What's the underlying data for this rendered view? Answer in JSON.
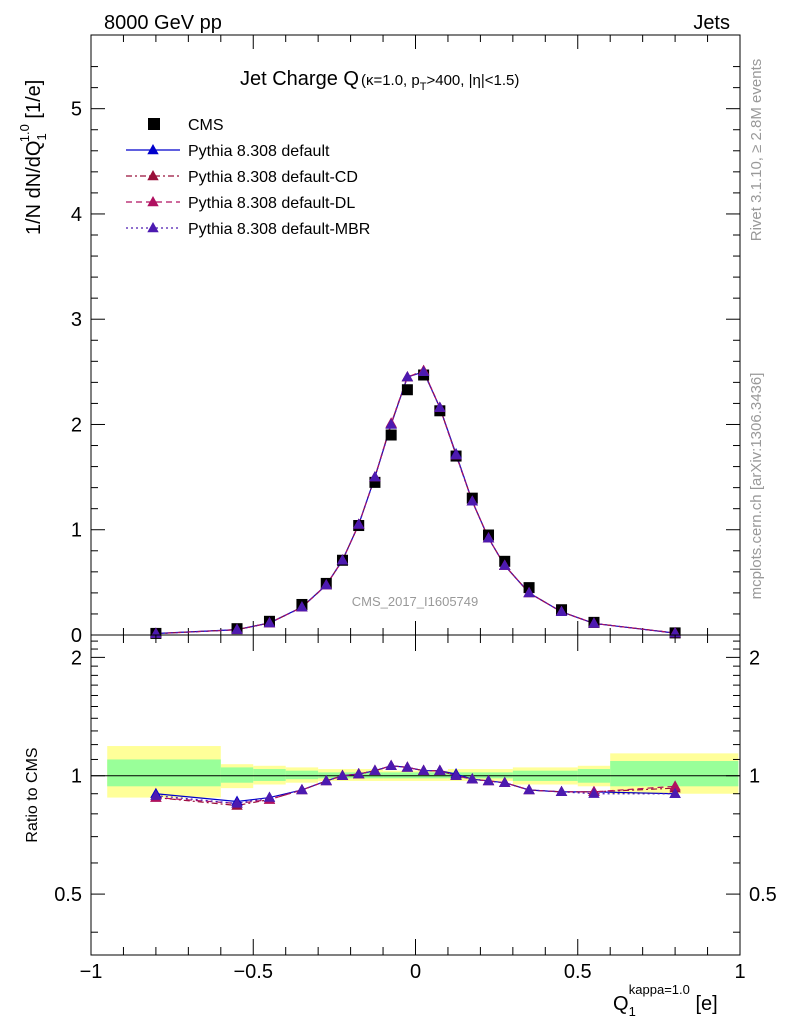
{
  "header": {
    "left": "8000 GeV pp",
    "right": "Jets"
  },
  "side_labels": {
    "rivet": "Rivet 3.1.10, ≥ 2.8M events",
    "mcplots": "mcplots.cern.ch [arXiv:1306.3436]"
  },
  "watermark": "CMS_2017_I1605749",
  "chart_data": [
    {
      "type": "scatter",
      "panel": "main",
      "title": "Jet Charge Q",
      "title_sub": {
        "prefix": "(κ=1.0, p",
        "sub": "T",
        "suffix": ">400, |η|<1.5)"
      },
      "ylabel": {
        "base": "1/N dN/dQ",
        "sub": "1",
        "sup": "1.0",
        "unit": " [1/e]"
      },
      "xlim": [
        -1,
        1
      ],
      "ylim": [
        0,
        5.7
      ],
      "y_ticks": [
        0,
        1,
        2,
        3,
        4,
        5
      ],
      "x": [
        -0.8,
        -0.55,
        -0.45,
        -0.35,
        -0.275,
        -0.225,
        -0.175,
        -0.125,
        -0.075,
        -0.025,
        0.025,
        0.075,
        0.125,
        0.175,
        0.225,
        0.275,
        0.35,
        0.45,
        0.55,
        0.8
      ],
      "legend": {
        "placement": "top-left"
      },
      "series": [
        {
          "name": "CMS",
          "style": "data",
          "color": "#000000",
          "values": [
            0.015,
            0.06,
            0.13,
            0.29,
            0.49,
            0.71,
            1.04,
            1.45,
            1.9,
            2.33,
            2.47,
            2.13,
            1.7,
            1.3,
            0.95,
            0.7,
            0.45,
            0.24,
            0.12,
            0.02
          ]
        },
        {
          "name": "Pythia 8.308 default",
          "style": "solid",
          "color": "#0000cc",
          "values": [
            0.014,
            0.051,
            0.115,
            0.265,
            0.475,
            0.71,
            1.05,
            1.5,
            2.0,
            2.45,
            2.5,
            2.16,
            1.72,
            1.27,
            0.92,
            0.66,
            0.4,
            0.22,
            0.11,
            0.018
          ]
        },
        {
          "name": "Pythia 8.308 default-CD",
          "style": "dashdot",
          "color": "#99103a",
          "values": [
            0.013,
            0.051,
            0.114,
            0.263,
            0.474,
            0.71,
            1.05,
            1.5,
            2.01,
            2.45,
            2.51,
            2.16,
            1.71,
            1.27,
            0.92,
            0.66,
            0.4,
            0.22,
            0.11,
            0.019
          ]
        },
        {
          "name": "Pythia 8.308 default-DL",
          "style": "dashed",
          "color": "#b01060",
          "values": [
            0.013,
            0.05,
            0.114,
            0.263,
            0.474,
            0.71,
            1.05,
            1.5,
            2.01,
            2.45,
            2.51,
            2.16,
            1.71,
            1.27,
            0.92,
            0.66,
            0.4,
            0.22,
            0.11,
            0.019
          ]
        },
        {
          "name": "Pythia 8.308 default-MBR",
          "style": "dotted",
          "color": "#4c1ab0",
          "values": [
            0.013,
            0.051,
            0.114,
            0.264,
            0.474,
            0.71,
            1.05,
            1.5,
            2.0,
            2.45,
            2.5,
            2.16,
            1.71,
            1.27,
            0.92,
            0.66,
            0.4,
            0.22,
            0.11,
            0.018
          ]
        }
      ]
    },
    {
      "type": "scatter",
      "panel": "ratio",
      "ylabel": "Ratio to CMS",
      "xlabel": {
        "base": "Q",
        "sub": "1",
        "sup": "kappa=1.0",
        "unit": " [e]"
      },
      "xlim": [
        -1,
        1
      ],
      "ylim": [
        0.35,
        2.28
      ],
      "y_ticks": [
        0.5,
        1,
        2
      ],
      "y_tick_labels": [
        "0.5",
        "1",
        "2"
      ],
      "x_ticks": [
        -1,
        -0.5,
        0,
        0.5,
        1
      ],
      "x_tick_labels": [
        "−1",
        "−0.5",
        "0",
        "0.5",
        "1"
      ],
      "reference_line": 1,
      "bands": [
        {
          "x0": -0.95,
          "x1": -0.6,
          "yellow": [
            0.88,
            1.19
          ],
          "green": [
            0.94,
            1.1
          ]
        },
        {
          "x0": -0.6,
          "x1": -0.5,
          "yellow": [
            0.93,
            1.07
          ],
          "green": [
            0.96,
            1.05
          ]
        },
        {
          "x0": -0.5,
          "x1": -0.4,
          "yellow": [
            0.95,
            1.06
          ],
          "green": [
            0.97,
            1.04
          ]
        },
        {
          "x0": -0.4,
          "x1": -0.3,
          "yellow": [
            0.96,
            1.05
          ],
          "green": [
            0.98,
            1.03
          ]
        },
        {
          "x0": -0.3,
          "x1": -0.1,
          "yellow": [
            0.97,
            1.04
          ],
          "green": [
            0.985,
            1.02
          ]
        },
        {
          "x0": -0.1,
          "x1": 0.1,
          "yellow": [
            0.97,
            1.03
          ],
          "green": [
            0.985,
            1.02
          ]
        },
        {
          "x0": 0.1,
          "x1": 0.3,
          "yellow": [
            0.97,
            1.04
          ],
          "green": [
            0.985,
            1.02
          ]
        },
        {
          "x0": 0.3,
          "x1": 0.5,
          "yellow": [
            0.95,
            1.05
          ],
          "green": [
            0.97,
            1.03
          ]
        },
        {
          "x0": 0.5,
          "x1": 0.6,
          "yellow": [
            0.94,
            1.06
          ],
          "green": [
            0.96,
            1.04
          ]
        },
        {
          "x0": 0.6,
          "x1": 0.995,
          "yellow": [
            0.9,
            1.14
          ],
          "green": [
            0.94,
            1.09
          ]
        }
      ],
      "x": [
        -0.8,
        -0.55,
        -0.45,
        -0.35,
        -0.275,
        -0.225,
        -0.175,
        -0.125,
        -0.075,
        -0.025,
        0.025,
        0.075,
        0.125,
        0.175,
        0.225,
        0.275,
        0.35,
        0.45,
        0.55,
        0.8
      ],
      "series": [
        {
          "name": "Pythia 8.308 default",
          "style": "solid",
          "color": "#0000cc",
          "values": [
            0.9,
            0.86,
            0.88,
            0.92,
            0.97,
            1.0,
            1.01,
            1.03,
            1.06,
            1.05,
            1.03,
            1.03,
            1.01,
            0.98,
            0.97,
            0.96,
            0.92,
            0.91,
            0.91,
            0.9
          ]
        },
        {
          "name": "Pythia 8.308 default-CD",
          "style": "dashdot",
          "color": "#99103a",
          "values": [
            0.88,
            0.84,
            0.87,
            0.92,
            0.97,
            1.0,
            1.01,
            1.03,
            1.06,
            1.05,
            1.03,
            1.03,
            1.0,
            0.98,
            0.97,
            0.96,
            0.92,
            0.91,
            0.91,
            0.93
          ]
        },
        {
          "name": "Pythia 8.308 default-DL",
          "style": "dashed",
          "color": "#b01060",
          "values": [
            0.88,
            0.85,
            0.87,
            0.92,
            0.97,
            1.0,
            1.01,
            1.03,
            1.06,
            1.05,
            1.03,
            1.03,
            1.0,
            0.98,
            0.97,
            0.96,
            0.92,
            0.91,
            0.91,
            0.94
          ]
        },
        {
          "name": "Pythia 8.308 default-MBR",
          "style": "dotted",
          "color": "#4c1ab0",
          "values": [
            0.89,
            0.85,
            0.88,
            0.92,
            0.97,
            1.0,
            1.01,
            1.03,
            1.06,
            1.05,
            1.03,
            1.03,
            1.0,
            0.98,
            0.97,
            0.96,
            0.92,
            0.91,
            0.9,
            0.9
          ]
        }
      ]
    }
  ]
}
